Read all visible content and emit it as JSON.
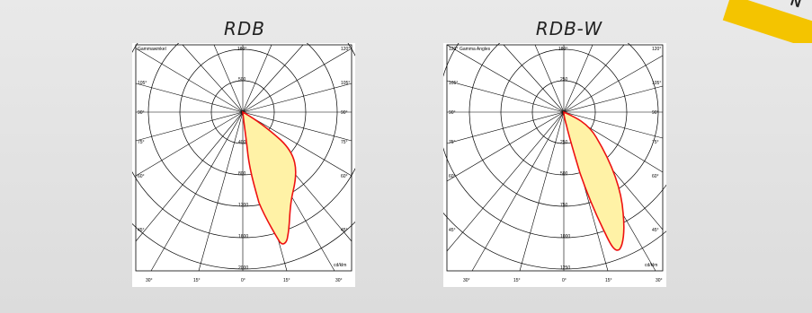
{
  "banner": {
    "text": "N"
  },
  "panels": [
    {
      "title": "RDB",
      "corner_label_left": "Gammawinkel",
      "top_label": "180°",
      "top_right_label": "120°",
      "unit_label": "cd/klm",
      "left_angles": [
        "105°",
        "90°",
        "75°",
        "60°",
        "45°"
      ],
      "right_angles": [
        "105°",
        "90°",
        "75°",
        "60°",
        "45°"
      ],
      "bottom_angles": [
        "30°",
        "15°",
        "0°",
        "15°",
        "30°"
      ],
      "radial_values": [
        "400",
        "800",
        "1200",
        "1600",
        "2000"
      ],
      "center_label": "500"
    },
    {
      "title": "RDB-W",
      "corner_label_left": "120°",
      "corner_label_left2": "Gamma Angles",
      "top_label": "180°",
      "top_right_label": "120°",
      "unit_label": "cd/klm",
      "left_angles": [
        "105°",
        "90°",
        "75°",
        "60°",
        "45°"
      ],
      "right_angles": [
        "105°",
        "90°",
        "75°",
        "60°",
        "45°"
      ],
      "bottom_angles": [
        "30°",
        "15°",
        "0°",
        "15°",
        "30°"
      ],
      "radial_values": [
        "250",
        "500",
        "750",
        "1000",
        "1250"
      ],
      "center_label": "250"
    }
  ]
}
